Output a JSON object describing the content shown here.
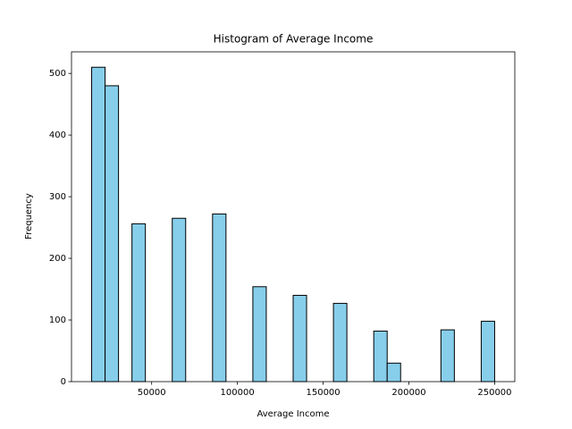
{
  "chart_data": {
    "type": "histogram",
    "title": "Histogram of Average Income",
    "xlabel": "Average Income",
    "ylabel": "Frequency",
    "bins": [
      15000,
      22833.33,
      30666.67,
      38500,
      46333.33,
      54166.67,
      62000,
      69833.33,
      77666.67,
      85500,
      93333.33,
      101166.67,
      109000,
      116833.33,
      124666.67,
      132500,
      140333.33,
      148166.67,
      156000,
      163833.33,
      171666.67,
      179500,
      187333.33,
      195166.67,
      203000,
      210833.33,
      218666.67,
      226500,
      234333.33,
      242166.67,
      250000
    ],
    "counts": [
      510,
      480,
      0,
      256,
      0,
      0,
      265,
      0,
      0,
      272,
      0,
      0,
      154,
      0,
      0,
      140,
      0,
      0,
      127,
      0,
      0,
      82,
      30,
      0,
      0,
      0,
      84,
      0,
      0,
      98
    ],
    "color": "#87ceeb",
    "edgecolor": "#000000",
    "xlim": [
      3250,
      261750
    ],
    "xticks": [
      50000,
      100000,
      150000,
      200000,
      250000
    ],
    "ylim": [
      0,
      535
    ],
    "yticks": [
      0,
      100,
      200,
      300,
      400,
      500
    ],
    "grid": false
  }
}
